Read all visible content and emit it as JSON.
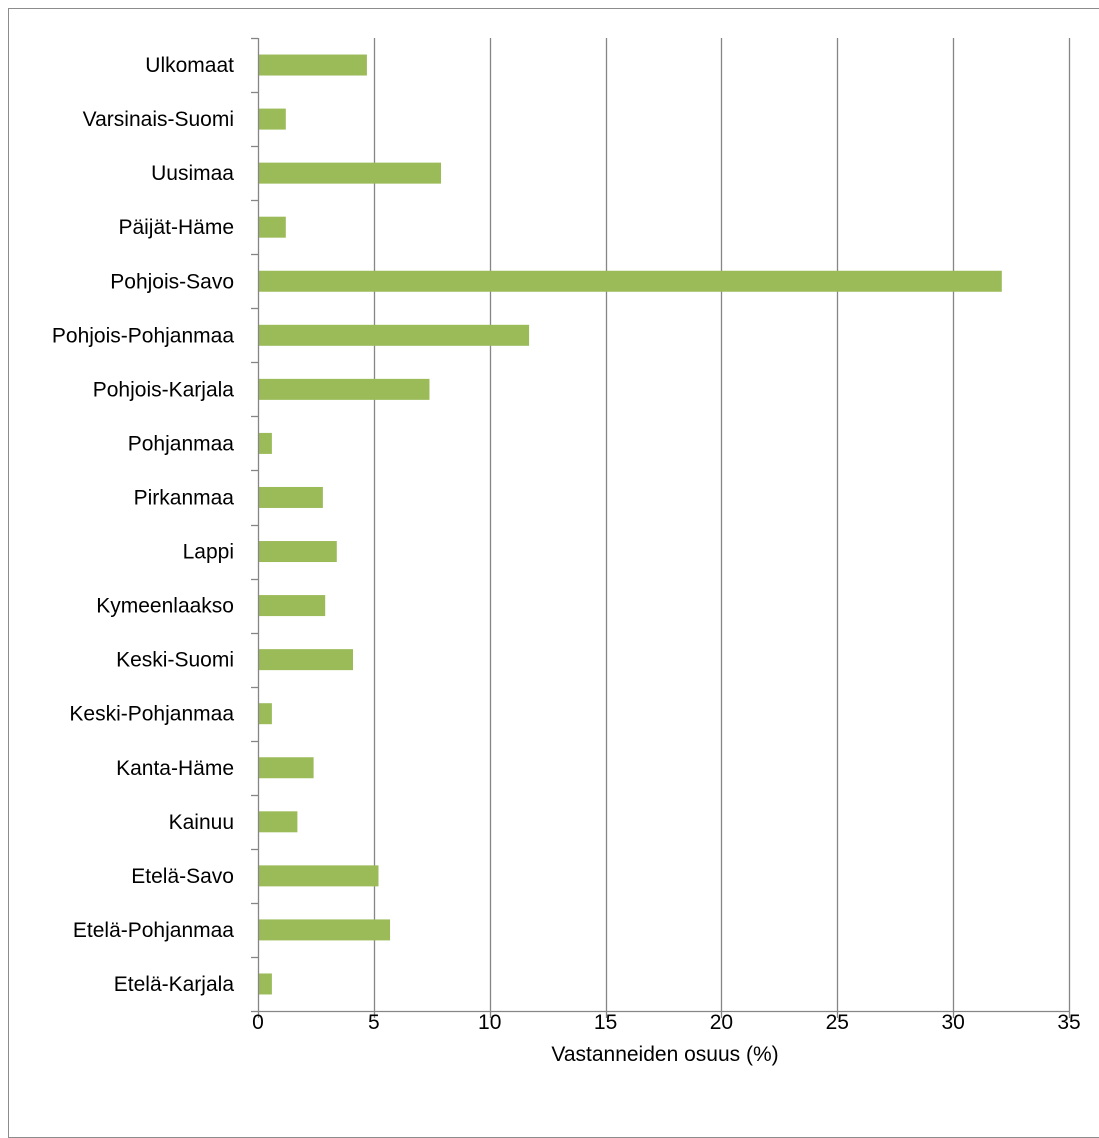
{
  "chart_data": {
    "type": "bar",
    "orientation": "horizontal",
    "title": "",
    "xlabel": "Vastanneiden osuus (%)",
    "ylabel": "",
    "categories": [
      "Ulkomaat",
      "Varsinais-Suomi",
      "Uusimaa",
      "Päijät-Häme",
      "Pohjois-Savo",
      "Pohjois-Pohjanmaa",
      "Pohjois-Karjala",
      "Pohjanmaa",
      "Pirkanmaa",
      "Lappi",
      "Kymeenlaakso",
      "Keski-Suomi",
      "Keski-Pohjanmaa",
      "Kanta-Häme",
      "Kainuu",
      "Etelä-Savo",
      "Etelä-Pohjanmaa",
      "Etelä-Karjala"
    ],
    "values": [
      4.7,
      1.2,
      7.9,
      1.2,
      32.1,
      11.7,
      7.4,
      0.6,
      2.8,
      3.4,
      2.9,
      4.1,
      0.6,
      2.4,
      1.7,
      5.2,
      5.7,
      0.6
    ],
    "xlim": [
      0,
      35
    ],
    "xticks": [
      0,
      5,
      10,
      15,
      20,
      25,
      30,
      35
    ],
    "grid": "vertical",
    "legend": "none",
    "colors": {
      "bar": "#9bbb59",
      "grid": "#868686",
      "axis": "#868686",
      "text": "#000000"
    }
  }
}
